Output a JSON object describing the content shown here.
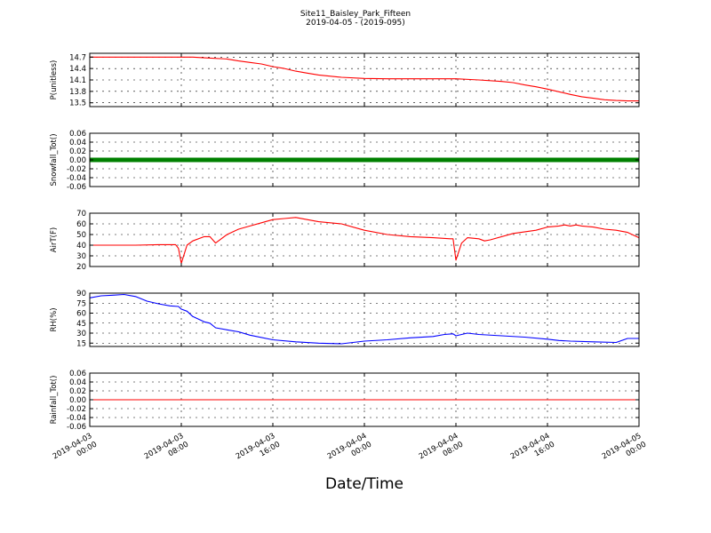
{
  "figure": {
    "title": "Site11_Baisley_Park_Fifteen",
    "subtitle": "2019-04-05 - (2019-095)",
    "xlabel": "Date/Time",
    "xticks": [
      {
        "t": 0,
        "line1": "2019-04-03",
        "line2": "00:00"
      },
      {
        "t": 8,
        "line1": "2019-04-03",
        "line2": "08:00"
      },
      {
        "t": 16,
        "line1": "2019-04-03",
        "line2": "16:00"
      },
      {
        "t": 24,
        "line1": "2019-04-04",
        "line2": "00:00"
      },
      {
        "t": 32,
        "line1": "2019-04-04",
        "line2": "08:00"
      },
      {
        "t": 40,
        "line1": "2019-04-04",
        "line2": "16:00"
      },
      {
        "t": 48,
        "line1": "2019-04-05",
        "line2": "00:00"
      }
    ]
  },
  "chart_data": [
    {
      "type": "line",
      "ylabel": "P(unitless)",
      "xlim": [
        "2019-04-03 00:00",
        "2019-04-05 00:00"
      ],
      "ylim": [
        13.4,
        14.8
      ],
      "yticks": [
        13.5,
        13.8,
        14.1,
        14.4,
        14.7
      ],
      "grid": true,
      "color": "#ff0000",
      "marker": "none",
      "series": [
        {
          "x": [
            "2019-04-03 00:00",
            "2019-04-03 03:00",
            "2019-04-03 06:00",
            "2019-04-03 09:00",
            "2019-04-03 10:00",
            "2019-04-03 12:00",
            "2019-04-03 13:00",
            "2019-04-03 14:00",
            "2019-04-03 15:00",
            "2019-04-03 16:00",
            "2019-04-03 17:00",
            "2019-04-03 18:00",
            "2019-04-03 19:00",
            "2019-04-03 20:00",
            "2019-04-03 22:00",
            "2019-04-04 00:00",
            "2019-04-04 02:00",
            "2019-04-04 04:00",
            "2019-04-04 06:00",
            "2019-04-04 08:00",
            "2019-04-04 10:00",
            "2019-04-04 12:00",
            "2019-04-04 13:00",
            "2019-04-04 14:00",
            "2019-04-04 15:00",
            "2019-04-04 16:00",
            "2019-04-04 17:00",
            "2019-04-04 18:00",
            "2019-04-04 19:00",
            "2019-04-04 20:00",
            "2019-04-04 21:00",
            "2019-04-04 22:00",
            "2019-04-04 23:00",
            "2019-04-05 00:00"
          ],
          "y": [
            14.7,
            14.7,
            14.7,
            14.7,
            14.68,
            14.65,
            14.6,
            14.56,
            14.52,
            14.45,
            14.4,
            14.33,
            14.28,
            14.23,
            14.17,
            14.14,
            14.13,
            14.13,
            14.13,
            14.13,
            14.1,
            14.06,
            14.03,
            13.97,
            13.92,
            13.86,
            13.79,
            13.72,
            13.66,
            13.62,
            13.58,
            13.56,
            13.55,
            13.55
          ]
        }
      ]
    },
    {
      "type": "line",
      "ylabel": "Snowfall_Tot()",
      "xlim": [
        "2019-04-03 00:00",
        "2019-04-05 00:00"
      ],
      "ylim": [
        -0.06,
        0.06
      ],
      "yticks": [
        -0.06,
        -0.04,
        -0.02,
        0.0,
        0.02,
        0.04,
        0.06
      ],
      "grid": true,
      "color": "#008000",
      "marker": "dot",
      "series": [
        {
          "x": [
            "2019-04-03 00:00",
            "2019-04-05 00:00"
          ],
          "y": [
            0.0,
            0.0
          ]
        }
      ]
    },
    {
      "type": "line",
      "ylabel": "AirT(F)",
      "xlim": [
        "2019-04-03 00:00",
        "2019-04-05 00:00"
      ],
      "ylim": [
        20,
        70
      ],
      "yticks": [
        20,
        30,
        40,
        50,
        60,
        70
      ],
      "grid": true,
      "color": "#ff0000",
      "marker": "none",
      "series": [
        {
          "x": [
            "2019-04-03 00:00",
            "2019-04-03 02:00",
            "2019-04-03 04:00",
            "2019-04-03 06:00",
            "2019-04-03 07:30",
            "2019-04-03 07:45",
            "2019-04-03 08:00",
            "2019-04-03 08:30",
            "2019-04-03 09:00",
            "2019-04-03 10:00",
            "2019-04-03 10:30",
            "2019-04-03 11:00",
            "2019-04-03 12:00",
            "2019-04-03 13:00",
            "2019-04-03 14:00",
            "2019-04-03 15:00",
            "2019-04-03 16:00",
            "2019-04-03 17:00",
            "2019-04-03 18:00",
            "2019-04-03 19:00",
            "2019-04-03 20:00",
            "2019-04-03 22:00",
            "2019-04-04 00:00",
            "2019-04-04 02:00",
            "2019-04-04 04:00",
            "2019-04-04 06:00",
            "2019-04-04 07:30",
            "2019-04-04 07:45",
            "2019-04-04 08:00",
            "2019-04-04 08:30",
            "2019-04-04 09:00",
            "2019-04-04 10:00",
            "2019-04-04 10:30",
            "2019-04-04 11:00",
            "2019-04-04 13:00",
            "2019-04-04 15:00",
            "2019-04-04 16:00",
            "2019-04-04 17:00",
            "2019-04-04 17:30",
            "2019-04-04 18:00",
            "2019-04-04 18:30",
            "2019-04-04 19:00",
            "2019-04-04 20:00",
            "2019-04-04 21:00",
            "2019-04-04 22:00",
            "2019-04-04 23:00",
            "2019-04-05 00:00"
          ],
          "y": [
            40,
            40,
            40,
            40.5,
            40.5,
            37,
            23,
            40,
            44,
            48,
            48,
            42,
            50,
            55,
            58,
            61,
            64,
            65,
            66,
            64,
            62,
            60,
            54,
            50,
            48,
            47,
            46,
            46,
            26,
            42,
            47,
            46,
            44,
            45,
            51,
            54,
            57,
            58,
            59,
            58,
            59,
            58,
            57,
            55,
            54,
            52,
            47
          ]
        }
      ]
    },
    {
      "type": "line",
      "ylabel": "RH(%)",
      "xlim": [
        "2019-04-03 00:00",
        "2019-04-05 00:00"
      ],
      "ylim": [
        10,
        90
      ],
      "yticks": [
        15,
        30,
        45,
        60,
        75,
        90
      ],
      "grid": true,
      "color": "#0000ff",
      "marker": "none",
      "series": [
        {
          "x": [
            "2019-04-03 00:00",
            "2019-04-03 01:00",
            "2019-04-03 02:00",
            "2019-04-03 03:00",
            "2019-04-03 04:00",
            "2019-04-03 05:00",
            "2019-04-03 06:00",
            "2019-04-03 07:00",
            "2019-04-03 07:45",
            "2019-04-03 08:00",
            "2019-04-03 08:30",
            "2019-04-03 09:00",
            "2019-04-03 10:00",
            "2019-04-03 10:30",
            "2019-04-03 11:00",
            "2019-04-03 12:00",
            "2019-04-03 13:00",
            "2019-04-03 14:00",
            "2019-04-03 16:00",
            "2019-04-03 18:00",
            "2019-04-03 20:00",
            "2019-04-03 22:00",
            "2019-04-04 00:00",
            "2019-04-04 02:00",
            "2019-04-04 04:00",
            "2019-04-04 06:00",
            "2019-04-04 07:00",
            "2019-04-04 07:45",
            "2019-04-04 08:00",
            "2019-04-04 09:00",
            "2019-04-04 10:00",
            "2019-04-04 12:00",
            "2019-04-04 14:00",
            "2019-04-04 16:00",
            "2019-04-04 17:00",
            "2019-04-04 18:00",
            "2019-04-04 20:00",
            "2019-04-04 22:00",
            "2019-04-04 23:00",
            "2019-04-05 00:00"
          ],
          "y": [
            83,
            86,
            87,
            88,
            85,
            78,
            74,
            71,
            70,
            66,
            63,
            55,
            47,
            45,
            38,
            35,
            32,
            27,
            20,
            17,
            15,
            14,
            18,
            20,
            23,
            25,
            28,
            29,
            26,
            30,
            28,
            26,
            24,
            21,
            19,
            18,
            17,
            16,
            22,
            22
          ]
        }
      ]
    },
    {
      "type": "line",
      "ylabel": "Rainfall_Tot()",
      "xlim": [
        "2019-04-03 00:00",
        "2019-04-05 00:00"
      ],
      "ylim": [
        -0.06,
        0.06
      ],
      "yticks": [
        -0.06,
        -0.04,
        -0.02,
        0.0,
        0.02,
        0.04,
        0.06
      ],
      "grid": true,
      "color": "#ff0000",
      "marker": "none",
      "series": [
        {
          "x": [
            "2019-04-03 00:00",
            "2019-04-05 00:00"
          ],
          "y": [
            0.0,
            0.0
          ]
        }
      ]
    }
  ]
}
